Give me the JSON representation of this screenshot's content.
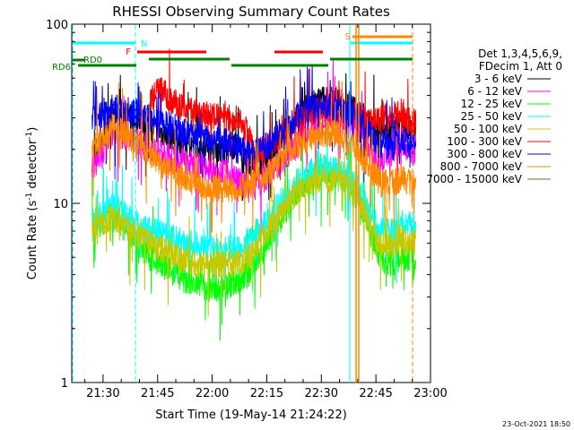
{
  "chart_data": {
    "type": "line",
    "title": "RHESSI Observing Summary Count Rates",
    "xlabel": "Start Time (19-May-14 21:24:22)",
    "ylabel": "Count Rate (s⁻¹ detector⁻¹)",
    "ylabel_main": "Count Rate (s",
    "ylabel_sup1": "-1",
    "ylabel_mid": " detector",
    "ylabel_sup2": "-1",
    "ylabel_end": ")",
    "y_scale": "log",
    "ylim": [
      1,
      100
    ],
    "yticks": [
      {
        "v": 1,
        "label": "1"
      },
      {
        "v": 10,
        "label": "10"
      },
      {
        "v": 100,
        "label": "100"
      }
    ],
    "xlim_minutes": [
      21.4,
      100.0
    ],
    "xticks": [
      {
        "m": 30,
        "label": "21:30"
      },
      {
        "m": 45,
        "label": "21:45"
      },
      {
        "m": 60,
        "label": "22:00"
      },
      {
        "m": 75,
        "label": "22:15"
      },
      {
        "m": 90,
        "label": "22:30"
      },
      {
        "m": 105,
        "label": "22:45"
      },
      {
        "m": 120,
        "label": "23:00"
      }
    ],
    "legend_header": [
      "Det 1,3,4,5,6,9,",
      "FDecim 1, Att 0"
    ],
    "legend_placement": "right",
    "series": [
      {
        "name": "3 - 6 keV",
        "color": "#000000",
        "points": [
          [
            27,
            18
          ],
          [
            31,
            25
          ],
          [
            32,
            33
          ],
          [
            38,
            30
          ],
          [
            43,
            27
          ],
          [
            48,
            24
          ],
          [
            53,
            22
          ],
          [
            58,
            21
          ],
          [
            63,
            20
          ],
          [
            66,
            21
          ],
          [
            70,
            16
          ],
          [
            75,
            18
          ],
          [
            80,
            25
          ],
          [
            85,
            33
          ],
          [
            90,
            38
          ],
          [
            95,
            37
          ],
          [
            100,
            33
          ],
          [
            103,
            28
          ],
          [
            106,
            24
          ],
          [
            110,
            27
          ],
          [
            112,
            31
          ],
          [
            113,
            28
          ],
          [
            115,
            25
          ],
          [
            116,
            27
          ]
        ]
      },
      {
        "name": "6 - 12 keV",
        "color": "#ff00ff",
        "points": [
          [
            27,
            16
          ],
          [
            31,
            20
          ],
          [
            32,
            25
          ],
          [
            38,
            23
          ],
          [
            43,
            20
          ],
          [
            48,
            18
          ],
          [
            53,
            17
          ],
          [
            58,
            16
          ],
          [
            63,
            15
          ],
          [
            66,
            14
          ],
          [
            70,
            12
          ],
          [
            75,
            14
          ],
          [
            80,
            18
          ],
          [
            85,
            24
          ],
          [
            90,
            29
          ],
          [
            95,
            29
          ],
          [
            100,
            26
          ],
          [
            103,
            21
          ],
          [
            106,
            17
          ],
          [
            110,
            20
          ],
          [
            112,
            23
          ],
          [
            113,
            21
          ],
          [
            115,
            19
          ],
          [
            116,
            20
          ]
        ]
      },
      {
        "name": "12 - 25 keV",
        "color": "#00ff00",
        "points": [
          [
            27,
            7.5
          ],
          [
            31,
            8
          ],
          [
            32,
            9
          ],
          [
            38,
            6.5
          ],
          [
            43,
            5
          ],
          [
            48,
            4.3
          ],
          [
            53,
            3.6
          ],
          [
            58,
            3.4
          ],
          [
            63,
            3.4
          ],
          [
            66,
            3.6
          ],
          [
            70,
            4
          ],
          [
            75,
            6
          ],
          [
            80,
            9
          ],
          [
            85,
            13
          ],
          [
            90,
            15
          ],
          [
            95,
            14
          ],
          [
            100,
            11
          ],
          [
            103,
            7.5
          ],
          [
            106,
            5
          ],
          [
            110,
            4.5
          ],
          [
            112,
            5.5
          ],
          [
            113,
            5
          ],
          [
            115,
            5
          ],
          [
            116,
            4.5
          ]
        ]
      },
      {
        "name": "25 - 50 keV",
        "color": "#00ffff",
        "points": [
          [
            27,
            8
          ],
          [
            31,
            9
          ],
          [
            32,
            10
          ],
          [
            38,
            8
          ],
          [
            43,
            7
          ],
          [
            48,
            6.5
          ],
          [
            53,
            6
          ],
          [
            58,
            5.7
          ],
          [
            63,
            5.5
          ],
          [
            66,
            5.7
          ],
          [
            70,
            6
          ],
          [
            75,
            8
          ],
          [
            80,
            11
          ],
          [
            85,
            14
          ],
          [
            90,
            16
          ],
          [
            95,
            15
          ],
          [
            100,
            12
          ],
          [
            103,
            9
          ],
          [
            106,
            7
          ],
          [
            110,
            7
          ],
          [
            112,
            8
          ],
          [
            113,
            7.5
          ],
          [
            115,
            7.5
          ],
          [
            116,
            7
          ]
        ]
      },
      {
        "name": "50 - 100 keV",
        "color": "#c8c800",
        "points": [
          [
            27,
            7
          ],
          [
            31,
            8
          ],
          [
            32,
            8.5
          ],
          [
            38,
            7
          ],
          [
            43,
            6
          ],
          [
            48,
            5.3
          ],
          [
            53,
            4.8
          ],
          [
            58,
            4.6
          ],
          [
            63,
            4.5
          ],
          [
            66,
            4.6
          ],
          [
            70,
            5
          ],
          [
            75,
            7
          ],
          [
            80,
            9.5
          ],
          [
            85,
            12.5
          ],
          [
            90,
            14
          ],
          [
            95,
            13.5
          ],
          [
            100,
            11
          ],
          [
            103,
            8
          ],
          [
            106,
            6
          ],
          [
            110,
            6
          ],
          [
            112,
            6.5
          ],
          [
            113,
            6
          ],
          [
            115,
            6
          ],
          [
            116,
            6
          ]
        ]
      },
      {
        "name": "100 - 300 keV",
        "color": "#ff0000",
        "points": [
          [
            43,
            38
          ],
          [
            46,
            44
          ],
          [
            48,
            38
          ],
          [
            53,
            33
          ],
          [
            58,
            31
          ],
          [
            63,
            30
          ],
          [
            66,
            30
          ],
          [
            68,
            29
          ],
          [
            72,
            20
          ],
          [
            75,
            21
          ],
          [
            80,
            25
          ],
          [
            85,
            30
          ],
          [
            90,
            34
          ],
          [
            95,
            33
          ],
          [
            100,
            31
          ],
          [
            103,
            28
          ],
          [
            106,
            30
          ],
          [
            110,
            31
          ],
          [
            112,
            33
          ],
          [
            113,
            30
          ],
          [
            115,
            28
          ],
          [
            116,
            29
          ]
        ]
      },
      {
        "name": "300 - 800 keV",
        "color": "#0000ff",
        "points": [
          [
            27,
            30
          ],
          [
            31,
            32
          ],
          [
            32,
            34
          ],
          [
            38,
            33
          ],
          [
            43,
            30
          ],
          [
            48,
            27
          ],
          [
            53,
            25
          ],
          [
            58,
            23
          ],
          [
            63,
            22
          ],
          [
            66,
            21
          ],
          [
            70,
            19
          ],
          [
            75,
            21
          ],
          [
            80,
            27
          ],
          [
            85,
            32
          ],
          [
            90,
            35
          ],
          [
            95,
            34
          ],
          [
            100,
            30
          ],
          [
            103,
            25
          ],
          [
            106,
            21
          ],
          [
            110,
            21
          ],
          [
            112,
            23
          ],
          [
            113,
            22
          ],
          [
            115,
            21
          ],
          [
            116,
            21
          ]
        ]
      },
      {
        "name": "800 - 7000 keV",
        "color": "#ff8800",
        "points": [
          [
            27,
            20
          ],
          [
            31,
            24
          ],
          [
            32,
            27
          ],
          [
            38,
            23
          ],
          [
            43,
            19
          ],
          [
            48,
            15.5
          ],
          [
            53,
            13.5
          ],
          [
            58,
            12.5
          ],
          [
            63,
            12
          ],
          [
            66,
            12
          ],
          [
            70,
            12.5
          ],
          [
            75,
            14.5
          ],
          [
            80,
            18
          ],
          [
            85,
            22
          ],
          [
            90,
            25
          ],
          [
            95,
            24
          ],
          [
            100,
            20
          ],
          [
            103,
            16
          ],
          [
            106,
            13
          ],
          [
            110,
            13
          ],
          [
            112,
            14
          ],
          [
            113,
            13.5
          ],
          [
            115,
            13
          ],
          [
            116,
            13
          ]
        ]
      },
      {
        "name": "7000 - 15000 keV",
        "color": "#8b6914",
        "points": []
      }
    ],
    "annotations": {
      "n_label": "N",
      "f_label": "F",
      "s_label": "S",
      "rd0_label": "RD0",
      "rd6_label": "RD6"
    }
  },
  "timestamp": "23-Oct-2021 18:50"
}
